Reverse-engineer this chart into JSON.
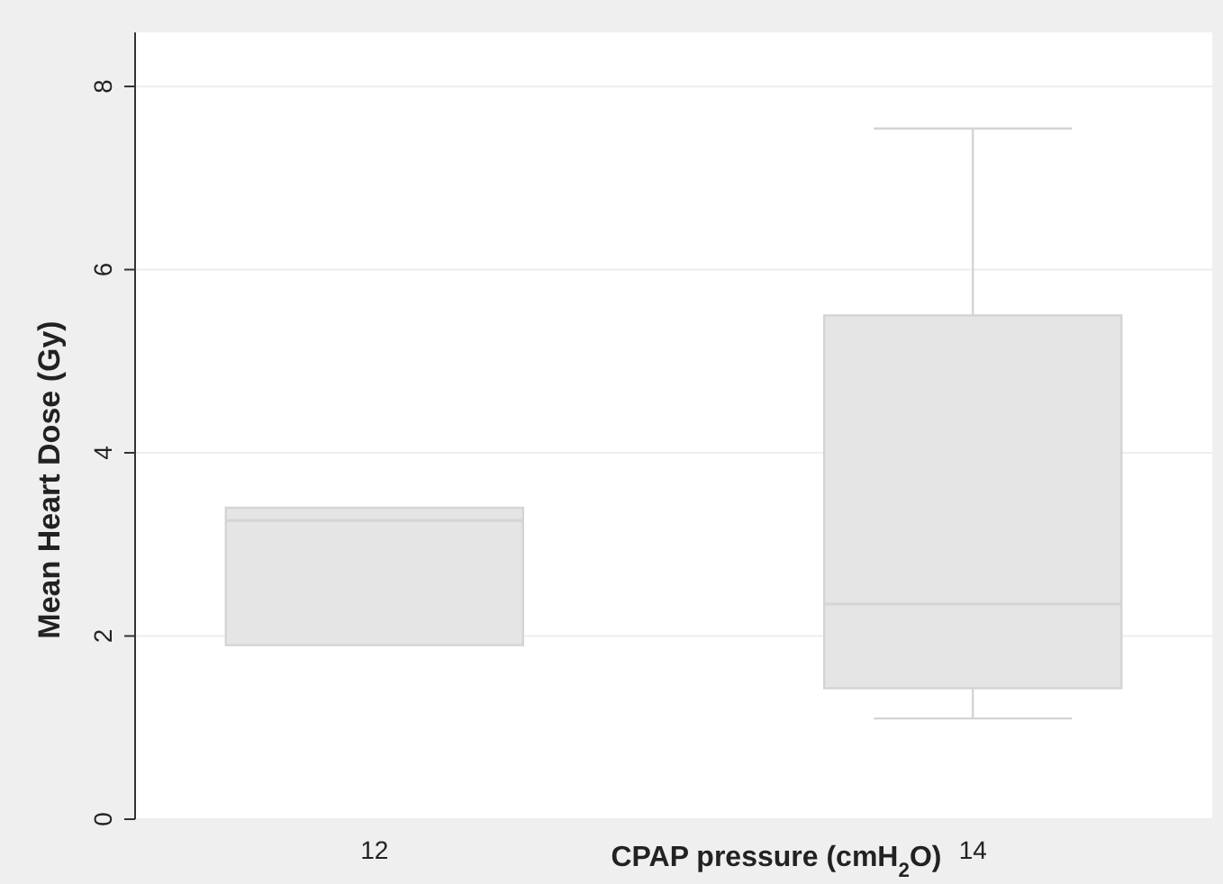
{
  "chart_data": {
    "type": "box",
    "categories": [
      "12",
      "14"
    ],
    "xlabel": "CPAP pressure (cmH$_{2}$O)",
    "ylabel": "Mean Heart Dose (Gy)",
    "ylim": [
      0,
      8
    ],
    "yticks": [
      0,
      2,
      4,
      6,
      8
    ],
    "grid": "y",
    "color": "#e5e5e5",
    "boxes": [
      {
        "low": 1.9,
        "q1": 1.9,
        "median": 3.26,
        "q3": 3.4,
        "high": 3.4
      },
      {
        "low": 1.1,
        "q1": 1.43,
        "median": 2.35,
        "q3": 5.5,
        "high": 7.54
      }
    ]
  }
}
